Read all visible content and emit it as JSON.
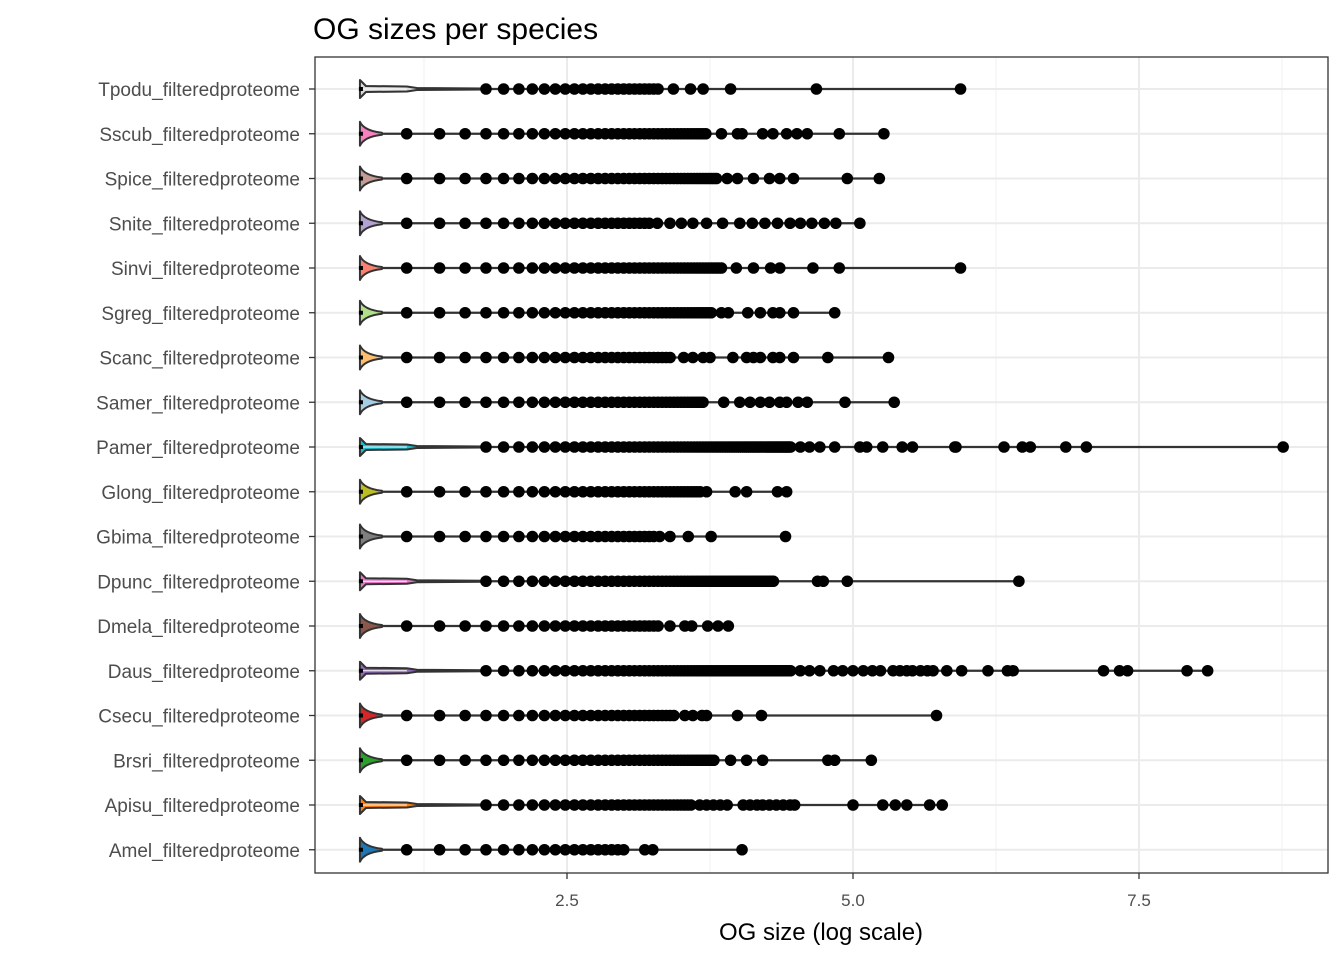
{
  "chart_data": {
    "type": "scatter",
    "subtype": "violin-with-points",
    "title": "OG sizes per species",
    "xlabel": "OG size (log scale)",
    "ylabel": "",
    "xlim": [
      0.3,
      9.15
    ],
    "xticks": [
      2.5,
      5.0,
      7.5
    ],
    "xtick_labels": [
      "2.5",
      "5.0",
      "7.5"
    ],
    "grid": true,
    "legend": "none",
    "series": [
      {
        "name": "Tpodu_filteredproteome",
        "color": "#D9D9D9",
        "min": 0.69,
        "dense_start": 1.79,
        "dense_end": 3.29,
        "outliers": [
          3.43,
          3.58,
          3.69,
          3.93,
          4.68,
          5.94
        ],
        "tail": true
      },
      {
        "name": "Sscub_filteredproteome",
        "color": "#F781BF",
        "min": 0.69,
        "dense_start": 1.1,
        "dense_end": 3.72,
        "outliers": [
          3.85,
          3.99,
          4.03,
          4.21,
          4.3,
          4.42,
          4.51,
          4.6,
          4.88,
          5.27
        ]
      },
      {
        "name": "Spice_filteredproteome",
        "color": "#C49C94",
        "min": 0.69,
        "dense_start": 1.1,
        "dense_end": 3.81,
        "outliers": [
          3.9,
          3.99,
          4.13,
          4.27,
          4.36,
          4.48,
          4.95,
          5.23
        ]
      },
      {
        "name": "Snite_filteredproteome",
        "color": "#B3A2D1",
        "min": 0.69,
        "dense_start": 1.1,
        "dense_end": 3.2,
        "outliers": [
          3.29,
          3.4,
          3.5,
          3.6,
          3.72,
          3.86,
          4.01,
          4.12,
          4.23,
          4.34,
          4.45,
          4.54,
          4.64,
          4.75,
          4.85,
          5.06
        ]
      },
      {
        "name": "Sinvi_filteredproteome",
        "color": "#FB8072",
        "min": 0.69,
        "dense_start": 1.1,
        "dense_end": 3.86,
        "outliers": [
          3.98,
          4.13,
          4.28,
          4.36,
          4.65,
          4.88,
          5.94
        ]
      },
      {
        "name": "Sgreg_filteredproteome",
        "color": "#B2DF8A",
        "min": 0.69,
        "dense_start": 1.1,
        "dense_end": 3.75,
        "outliers": [
          3.85,
          3.91,
          4.08,
          4.19,
          4.3,
          4.36,
          4.48,
          4.84
        ]
      },
      {
        "name": "Scanc_filteredproteome",
        "color": "#FDBF6F",
        "min": 0.69,
        "dense_start": 1.1,
        "dense_end": 3.4,
        "outliers": [
          3.52,
          3.6,
          3.69,
          3.75,
          3.95,
          4.07,
          4.13,
          4.19,
          4.3,
          4.36,
          4.48,
          4.78,
          5.31
        ]
      },
      {
        "name": "Samer_filteredproteome",
        "color": "#A6CEE3",
        "min": 0.69,
        "dense_start": 1.1,
        "dense_end": 3.69,
        "outliers": [
          3.87,
          4.01,
          4.1,
          4.19,
          4.27,
          4.36,
          4.42,
          4.52,
          4.6,
          4.93,
          5.36
        ]
      },
      {
        "name": "Pamer_filteredproteome",
        "color": "#17BECF",
        "min": 0.69,
        "dense_start": 1.79,
        "dense_end": 4.45,
        "outliers": [
          4.54,
          4.62,
          4.71,
          4.84,
          5.06,
          5.12,
          5.26,
          5.43,
          5.52,
          5.89,
          5.9,
          6.32,
          6.48,
          6.55,
          6.86,
          7.04,
          8.76
        ],
        "tail": true
      },
      {
        "name": "Glong_filteredproteome",
        "color": "#BCBD22",
        "min": 0.69,
        "dense_start": 1.1,
        "dense_end": 3.66,
        "outliers": [
          3.72,
          3.97,
          4.07,
          4.34,
          4.42
        ]
      },
      {
        "name": "Gbima_filteredproteome",
        "color": "#7F7F7F",
        "min": 0.69,
        "dense_start": 1.1,
        "dense_end": 3.25,
        "outliers": [
          3.31,
          3.4,
          3.56,
          3.76,
          4.41
        ]
      },
      {
        "name": "Dpunc_filteredproteome",
        "color": "#E377C2",
        "min": 0.69,
        "dense_start": 1.79,
        "dense_end": 4.3,
        "outliers": [
          4.69,
          4.74,
          4.95,
          6.45
        ],
        "tail": true
      },
      {
        "name": "Dmela_filteredproteome",
        "color": "#8C564B",
        "min": 0.69,
        "dense_start": 1.1,
        "dense_end": 3.31,
        "outliers": [
          3.4,
          3.53,
          3.59,
          3.73,
          3.82,
          3.91
        ]
      },
      {
        "name": "Daus_filteredproteome",
        "color": "#9467BD",
        "min": 0.69,
        "dense_start": 1.79,
        "dense_end": 4.45,
        "outliers": [
          4.54,
          4.62,
          4.71,
          4.83,
          4.91,
          5.0,
          5.09,
          5.17,
          5.24,
          5.35,
          5.41,
          5.47,
          5.52,
          5.59,
          5.65,
          5.7,
          5.82,
          5.95,
          6.18,
          6.35,
          6.4,
          7.19,
          7.33,
          7.4,
          7.92,
          8.1
        ],
        "tail": true
      },
      {
        "name": "Csecu_filteredproteome",
        "color": "#D62728",
        "min": 0.69,
        "dense_start": 1.1,
        "dense_end": 3.43,
        "outliers": [
          3.53,
          3.6,
          3.68,
          3.72,
          3.99,
          4.2,
          5.73
        ]
      },
      {
        "name": "Brsri_filteredproteome",
        "color": "#2CA02C",
        "min": 0.69,
        "dense_start": 1.1,
        "dense_end": 3.78,
        "outliers": [
          3.93,
          4.07,
          4.21,
          4.78,
          4.84,
          5.16
        ]
      },
      {
        "name": "Apisu_filteredproteome",
        "color": "#FF7F0E",
        "min": 0.69,
        "dense_start": 1.79,
        "dense_end": 3.58,
        "outliers": [
          3.66,
          3.72,
          3.78,
          3.84,
          3.9,
          4.04,
          4.1,
          4.16,
          4.21,
          4.27,
          4.33,
          4.39,
          4.45,
          4.49,
          5.0,
          5.26,
          5.37,
          5.47,
          5.67,
          5.78
        ],
        "tail": true
      },
      {
        "name": "Amel_filteredproteome",
        "color": "#1F77B4",
        "min": 0.69,
        "dense_start": 1.1,
        "dense_end": 2.99,
        "outliers": [
          3.18,
          3.25,
          4.03
        ]
      }
    ]
  }
}
